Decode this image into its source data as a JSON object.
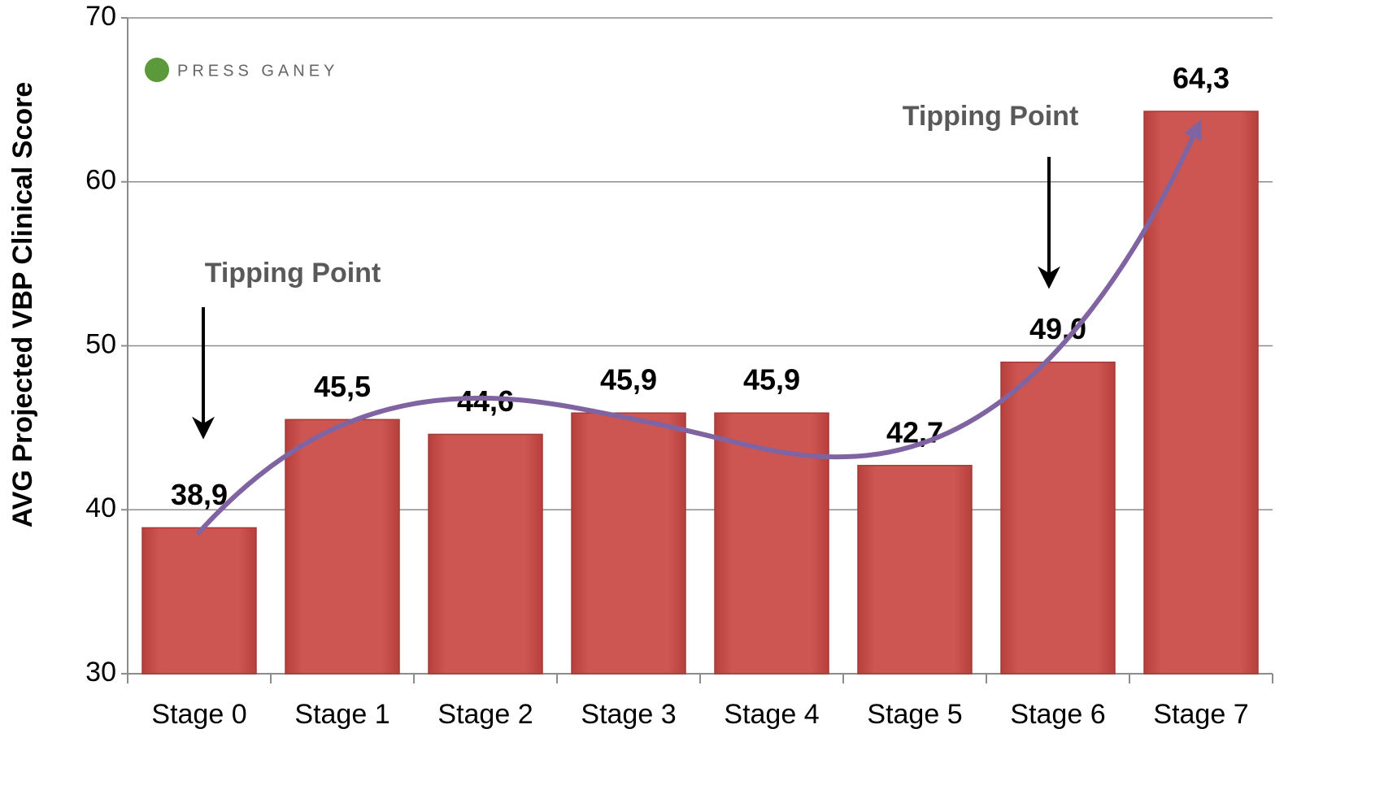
{
  "chart_data": {
    "type": "bar",
    "logo_text": "PRESS GANEY",
    "y_label": "AVG Projected VBP Clinical Score",
    "categories": [
      "Stage 0",
      "Stage 1",
      "Stage 2",
      "Stage 3",
      "Stage 4",
      "Stage 5",
      "Stage 6",
      "Stage 7"
    ],
    "values": [
      38.9,
      45.5,
      44.6,
      45.9,
      45.9,
      42.7,
      49.0,
      64.3
    ],
    "value_labels": [
      "38,9",
      "45,5",
      "44,6",
      "45,9",
      "45,9",
      "42,7",
      "49,0",
      "64,3"
    ],
    "color": "#cd5652",
    "ylim": [
      30,
      70
    ],
    "yticks": [
      30,
      40,
      50,
      60,
      70
    ],
    "grid": true,
    "annotations": [
      "Tipping Point",
      "Tipping Point"
    ]
  }
}
